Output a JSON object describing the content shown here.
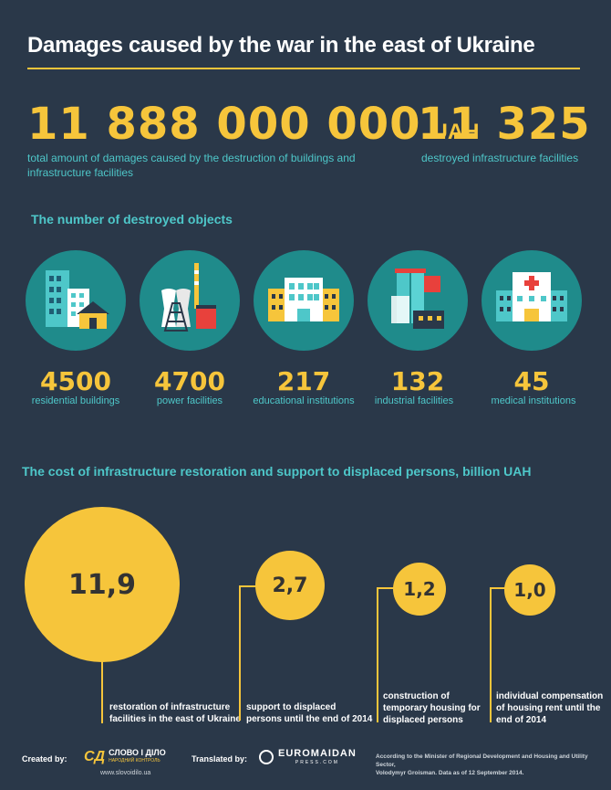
{
  "title": "Damages caused by the war in the east of Ukraine",
  "headline": {
    "total_amount": "11 888 000 000",
    "currency": "UAH",
    "total_desc": "total amount of damages caused by the destruction of buildings and infrastructure  facilities",
    "facilities_count": "11 325",
    "facilities_desc": "destroyed infrastructure facilities"
  },
  "objects": {
    "title": "The number of destroyed objects",
    "items": [
      {
        "value": "4500",
        "label": "residential buildings",
        "icon": "residential-buildings-icon"
      },
      {
        "value": "4700",
        "label": "power facilities",
        "icon": "power-plant-icon"
      },
      {
        "value": "217",
        "label": "educational institutions",
        "icon": "school-building-icon"
      },
      {
        "value": "132",
        "label": "industrial facilities",
        "icon": "factory-icon"
      },
      {
        "value": "45",
        "label": "medical institutions",
        "icon": "hospital-icon"
      }
    ]
  },
  "costs": {
    "title": "The cost of infrastructure restoration and support to displaced persons, billion UAH",
    "items": [
      {
        "value": "11,9",
        "label_lines": [
          "restoration of infrastructure",
          "facilities in the east of Ukraine"
        ]
      },
      {
        "value": "2,7",
        "label_lines": [
          "support to displaced",
          "persons until the end of 2014"
        ]
      },
      {
        "value": "1,2",
        "label_lines": [
          "construction of",
          "temporary housing for",
          "displaced persons"
        ]
      },
      {
        "value": "1,0",
        "label_lines": [
          "individual compensation",
          "of housing rent until the",
          "end of 2014"
        ]
      }
    ]
  },
  "footer": {
    "created_by": "Created by:",
    "creator_logo_mark": "СД",
    "creator_name": "СЛОВО І ДІЛО",
    "creator_tagline": "НАРОДНИЙ КОНТРОЛЬ",
    "creator_url": "www.slovoidilo.ua",
    "translated_by": "Translated by:",
    "translator_name": "EUROMAIDAN",
    "translator_sub": "PRESS.COM",
    "source_lines": [
      "According to the Minister of Regional Development and Housing and Utility Sector,",
      "Volodymyr Groisman. Data as of 12 September 2014."
    ]
  },
  "colors": {
    "background": "#2a3849",
    "accent_yellow": "#f6c53b",
    "accent_teal": "#4ec7c9",
    "icon_circle": "#1f8b8b"
  }
}
